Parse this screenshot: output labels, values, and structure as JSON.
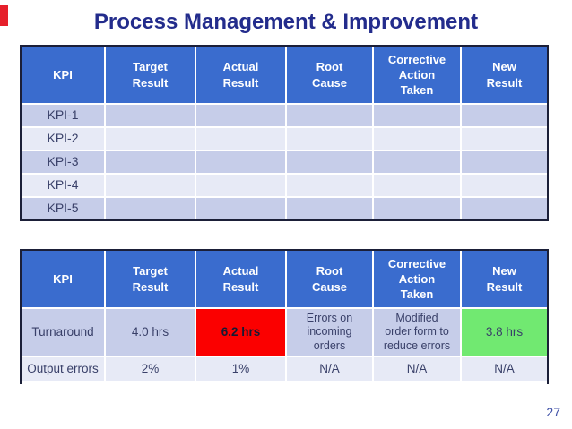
{
  "slide": {
    "title": "Process Management & Improvement",
    "page_number": "27"
  },
  "columns": [
    "KPI",
    "Target\nResult",
    "Actual\nResult",
    "Root\nCause",
    "Corrective\nAction\nTaken",
    "New\nResult"
  ],
  "t1": {
    "rows": [
      [
        "KPI-1",
        "",
        "",
        "",
        "",
        ""
      ],
      [
        "KPI-2",
        "",
        "",
        "",
        "",
        ""
      ],
      [
        "KPI-3",
        "",
        "",
        "",
        "",
        ""
      ],
      [
        "KPI-4",
        "",
        "",
        "",
        "",
        ""
      ],
      [
        "KPI-5",
        "",
        "",
        "",
        "",
        ""
      ]
    ]
  },
  "t2": {
    "rows": [
      [
        "Turnaround",
        "4.0 hrs",
        "6.2 hrs",
        "Errors on\nincoming\norders",
        "Modified\norder form to\nreduce errors",
        "3.8 hrs"
      ],
      [
        "Output errors",
        "2%",
        "1%",
        "N/A",
        "N/A",
        "N/A"
      ]
    ]
  },
  "colors": {
    "accent_mark": "#e6202b",
    "title_text": "#232c8c",
    "header_bg": "#3a6cce",
    "header_text": "#ffffff",
    "row_dark": "#c6cde9",
    "row_light": "#e7eaf6",
    "alert_bg": "#fb0000",
    "success_bg": "#71e971",
    "table_border": "#1b1f38",
    "cell_text": "#394069",
    "page_number_text": "#4052a8"
  }
}
